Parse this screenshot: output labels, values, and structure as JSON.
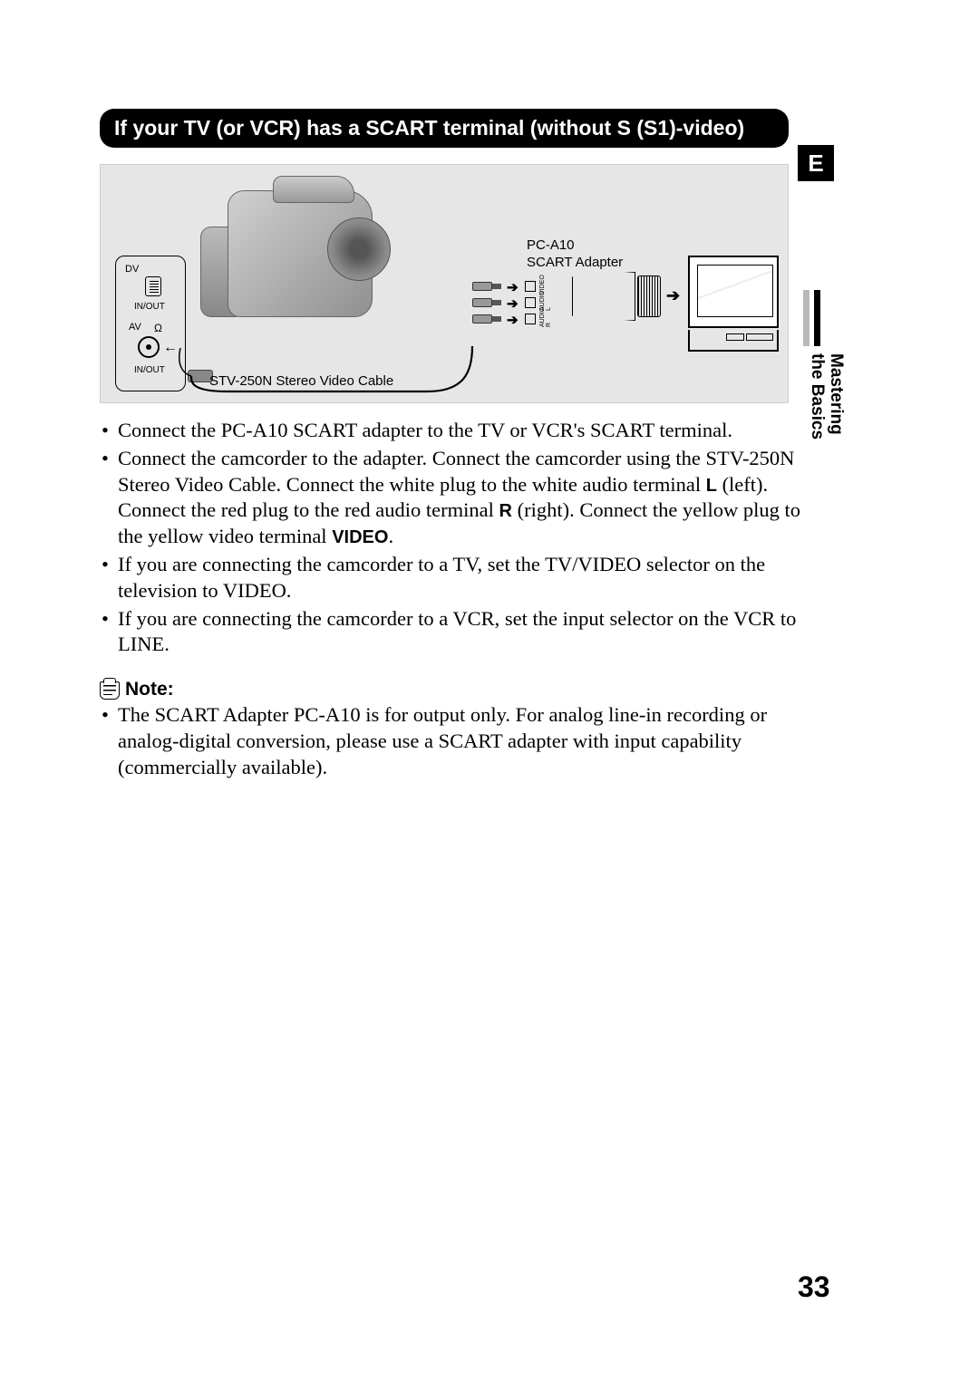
{
  "heading": "If your TV (or VCR) has a SCART terminal (without S (S1)-video)",
  "language_badge": "E",
  "diagram": {
    "scart_adapter_label_line1": "PC-A10",
    "scart_adapter_label_line2": "SCART Adapter",
    "cable_label": "STV-250N Stereo Video Cable",
    "side_panel": {
      "dv": "DV",
      "inout": "IN/OUT",
      "av": "AV",
      "headphone": "Ω"
    },
    "rca_labels": {
      "video": "VIDEO",
      "left": "AUDIO L",
      "right": "AUDIO R"
    },
    "arrow": "➔",
    "bg_color": "#e6e6e6"
  },
  "instructions": [
    {
      "text": "Connect the PC-A10 SCART adapter to the TV or VCR's SCART terminal."
    },
    {
      "segments": [
        "Connect the camcorder to the adapter. Connect the camcorder using the STV-250N Stereo Video Cable. Connect the white plug to the white audio terminal ",
        {
          "bold": "L"
        },
        " (left). Connect the red plug to the red audio terminal ",
        {
          "bold": "R"
        },
        " (right). Connect the yellow plug to the yellow video terminal ",
        {
          "bold": "VIDEO"
        },
        "."
      ]
    },
    {
      "text": "If you are connecting the camcorder to a TV, set the TV/VIDEO selector on the television to VIDEO."
    },
    {
      "text": "If you are connecting the camcorder to a VCR, set the input selector on the VCR to LINE."
    }
  ],
  "note_label": "Note:",
  "notes": [
    {
      "text": "The SCART Adapter PC-A10 is for output only. For analog line-in recording or analog-digital conversion, please use a SCART adapter with input capability (commercially available)."
    }
  ],
  "side_tab": {
    "line1": "Mastering",
    "line2": "the Basics"
  },
  "page_number": "33",
  "colors": {
    "text": "#000000",
    "bg": "#ffffff",
    "bar_bg": "#000000",
    "bar_text": "#ffffff",
    "tab_light": "#b9b9b9"
  }
}
